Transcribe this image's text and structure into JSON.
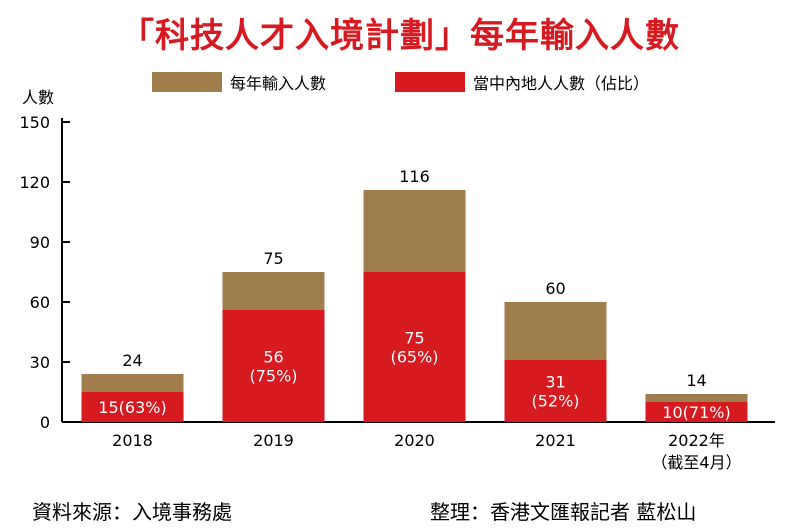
{
  "chart_data": {
    "type": "bar",
    "title": "「科技人才入境計劃」每年輸入人數",
    "ylabel": "人數",
    "ylim": [
      0,
      150
    ],
    "yticks": [
      0,
      30,
      60,
      90,
      120,
      150
    ],
    "categories": [
      "2018",
      "2019",
      "2020",
      "2021",
      "2022年"
    ],
    "category_notes": [
      "",
      "",
      "",
      "",
      "（截至4月）"
    ],
    "series": [
      {
        "name": "每年輸入人數",
        "color": "#a07d4d",
        "values": [
          24,
          75,
          116,
          60,
          14
        ],
        "labels": [
          "24",
          "75",
          "116",
          "60",
          "14"
        ]
      },
      {
        "name": "當中內地人人數（佔比）",
        "color": "#d71920",
        "values": [
          15,
          56,
          75,
          31,
          10
        ],
        "labels": [
          "15(63%)",
          "56\n(75%)",
          "75\n(65%)",
          "31\n(52%)",
          "10(71%)"
        ]
      }
    ],
    "grid": false,
    "legend_position": "top"
  },
  "footer": {
    "source": "資料來源：入境事務處",
    "credit": "整理：香港文匯報記者 藍松山"
  }
}
